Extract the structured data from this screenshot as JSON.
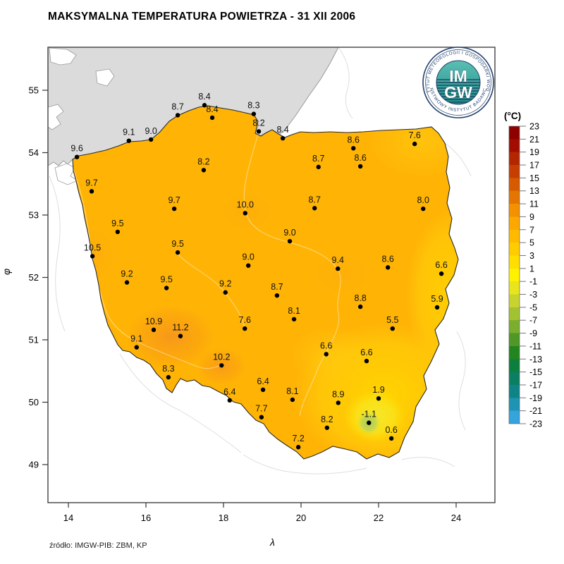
{
  "title": "MAKSYMALNA TEMPERATURA POWIETRZA - 31 XII 2006",
  "source": "źródło: IMGW-PIB: ZBM, KP",
  "logo": {
    "line1": "IM",
    "line2": "GW",
    "ring_top": "INSTYTUT METEOROLOGII I GOSPODARKI WODNEJ",
    "ring_bottom": "PAŃSTWOWY INSTYTUT BADAWCZY"
  },
  "axes": {
    "x_label": "λ",
    "y_label": "φ",
    "x_ticks": [
      14,
      16,
      18,
      20,
      22,
      24
    ],
    "y_ticks": [
      55,
      54,
      53,
      52,
      51,
      50,
      49
    ]
  },
  "legend": {
    "title": "(°C)",
    "tick_values": [
      23,
      21,
      19,
      17,
      15,
      13,
      11,
      9,
      7,
      5,
      3,
      1,
      -1,
      -3,
      -5,
      -7,
      -9,
      -11,
      -13,
      -15,
      -17,
      -19,
      -21,
      -23
    ],
    "band_colors": [
      "#8F0000",
      "#A30C00",
      "#B42600",
      "#C63F00",
      "#D65A00",
      "#E47500",
      "#F39100",
      "#FCA800",
      "#FFBA00",
      "#FFCC00",
      "#FFDE00",
      "#FFF200",
      "#E8E51C",
      "#C8D42E",
      "#A3C232",
      "#7BAE2E",
      "#4F9726",
      "#23851F",
      "#0B7F3C",
      "#0A7F62",
      "#0E8486",
      "#1E93B4",
      "#35A3DC"
    ]
  },
  "chart_data": {
    "type": "map-contour",
    "title": "MAKSYMALNA TEMPERATURA POWIETRZA - 31 XII 2006",
    "unit": "°C",
    "x_axis": {
      "label": "λ",
      "ticks": [
        14,
        16,
        18,
        20,
        22,
        24
      ]
    },
    "y_axis": {
      "label": "φ",
      "ticks": [
        55,
        54,
        53,
        52,
        51,
        50,
        49
      ]
    },
    "colorbar": {
      "min": -23,
      "max": 23,
      "step": 2,
      "title": "(°C)"
    },
    "stations": [
      {
        "lon": 14.22,
        "lat": 53.93,
        "t": 9.6
      },
      {
        "lon": 15.56,
        "lat": 54.19,
        "t": 9.1
      },
      {
        "lon": 16.13,
        "lat": 54.21,
        "t": 9.0
      },
      {
        "lon": 16.82,
        "lat": 54.6,
        "t": 8.7
      },
      {
        "lon": 17.51,
        "lat": 54.76,
        "t": 8.4
      },
      {
        "lon": 17.71,
        "lat": 54.56,
        "t": 8.4
      },
      {
        "lon": 18.78,
        "lat": 54.62,
        "t": 8.3
      },
      {
        "lon": 18.91,
        "lat": 54.34,
        "t": 8.2
      },
      {
        "lon": 19.53,
        "lat": 54.23,
        "t": 8.4
      },
      {
        "lon": 21.35,
        "lat": 54.07,
        "t": 8.6
      },
      {
        "lon": 22.93,
        "lat": 54.14,
        "t": 7.6
      },
      {
        "lon": 20.45,
        "lat": 53.77,
        "t": 8.7
      },
      {
        "lon": 21.53,
        "lat": 53.78,
        "t": 8.6
      },
      {
        "lon": 14.6,
        "lat": 53.38,
        "t": 9.7
      },
      {
        "lon": 17.49,
        "lat": 53.72,
        "t": 8.2
      },
      {
        "lon": 16.73,
        "lat": 53.1,
        "t": 9.7
      },
      {
        "lon": 18.56,
        "lat": 53.03,
        "t": 10.0
      },
      {
        "lon": 20.35,
        "lat": 53.11,
        "t": 8.7
      },
      {
        "lon": 23.15,
        "lat": 53.1,
        "t": 8.0
      },
      {
        "lon": 15.27,
        "lat": 52.73,
        "t": 9.5
      },
      {
        "lon": 19.71,
        "lat": 52.58,
        "t": 9.0
      },
      {
        "lon": 14.62,
        "lat": 52.34,
        "t": 10.5
      },
      {
        "lon": 16.82,
        "lat": 52.4,
        "t": 9.5
      },
      {
        "lon": 18.64,
        "lat": 52.19,
        "t": 9.0
      },
      {
        "lon": 15.51,
        "lat": 51.92,
        "t": 9.2
      },
      {
        "lon": 16.53,
        "lat": 51.83,
        "t": 9.5
      },
      {
        "lon": 18.05,
        "lat": 51.76,
        "t": 9.2
      },
      {
        "lon": 20.95,
        "lat": 52.14,
        "t": 9.4
      },
      {
        "lon": 22.24,
        "lat": 52.16,
        "t": 8.6
      },
      {
        "lon": 23.62,
        "lat": 52.06,
        "t": 6.6
      },
      {
        "lon": 19.38,
        "lat": 51.71,
        "t": 8.7
      },
      {
        "lon": 21.53,
        "lat": 51.53,
        "t": 8.8
      },
      {
        "lon": 23.51,
        "lat": 51.52,
        "t": 5.9
      },
      {
        "lon": 19.82,
        "lat": 51.33,
        "t": 8.1
      },
      {
        "lon": 22.36,
        "lat": 51.18,
        "t": 5.5
      },
      {
        "lon": 16.2,
        "lat": 51.16,
        "t": 10.9
      },
      {
        "lon": 16.89,
        "lat": 51.06,
        "t": 11.2
      },
      {
        "lon": 18.55,
        "lat": 51.18,
        "t": 7.6
      },
      {
        "lon": 15.76,
        "lat": 50.88,
        "t": 9.1
      },
      {
        "lon": 17.95,
        "lat": 50.59,
        "t": 10.2
      },
      {
        "lon": 16.58,
        "lat": 50.4,
        "t": 8.3
      },
      {
        "lon": 20.65,
        "lat": 50.77,
        "t": 6.6
      },
      {
        "lon": 21.69,
        "lat": 50.66,
        "t": 6.6
      },
      {
        "lon": 19.02,
        "lat": 50.2,
        "t": 6.4
      },
      {
        "lon": 18.16,
        "lat": 50.03,
        "t": 6.4
      },
      {
        "lon": 19.78,
        "lat": 50.04,
        "t": 8.1
      },
      {
        "lon": 18.98,
        "lat": 49.76,
        "t": 7.7
      },
      {
        "lon": 20.96,
        "lat": 49.99,
        "t": 8.9
      },
      {
        "lon": 22.0,
        "lat": 50.06,
        "t": 1.9
      },
      {
        "lon": 21.75,
        "lat": 49.67,
        "t": -1.1
      },
      {
        "lon": 20.67,
        "lat": 49.59,
        "t": 8.2
      },
      {
        "lon": 22.33,
        "lat": 49.42,
        "t": 0.6
      },
      {
        "lon": 19.93,
        "lat": 49.28,
        "t": 7.2
      }
    ]
  }
}
